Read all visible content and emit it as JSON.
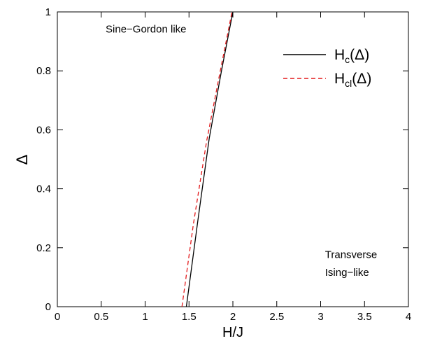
{
  "chart_data": {
    "type": "line",
    "title": "",
    "xlabel": "H/J",
    "ylabel": "Δ",
    "xlim": [
      0,
      4
    ],
    "ylim": [
      0,
      1
    ],
    "x_ticks": [
      "0",
      "0.5",
      "1",
      "1.5",
      "2",
      "2.5",
      "3",
      "3.5",
      "4"
    ],
    "y_ticks": [
      "0",
      "0.2",
      "0.4",
      "0.6",
      "0.8",
      "1"
    ],
    "grid": false,
    "legend_position": "top-right",
    "series": [
      {
        "name_main": "H",
        "name_sub": "c",
        "name_arg": "(Δ)",
        "style": "solid",
        "color": "#000000",
        "points": [
          [
            1.47,
            0.0
          ],
          [
            1.6,
            0.29
          ],
          [
            1.73,
            0.57
          ],
          [
            1.87,
            0.8
          ],
          [
            2.0,
            1.0
          ]
        ]
      },
      {
        "name_main": "H",
        "name_sub": "cl",
        "name_arg": "(Δ)",
        "style": "dashed",
        "color": "#e31a1c",
        "points": [
          [
            1.42,
            0.0
          ],
          [
            1.55,
            0.28
          ],
          [
            1.7,
            0.56
          ],
          [
            1.85,
            0.79
          ],
          [
            1.99,
            1.0
          ]
        ]
      }
    ],
    "annotations": [
      {
        "text": "Sine−Gordon like",
        "x": 0.55,
        "y": 0.93
      },
      {
        "text": "Transverse",
        "x": 3.05,
        "y": 0.165
      },
      {
        "text": "Ising−like",
        "x": 3.05,
        "y": 0.105
      }
    ]
  }
}
